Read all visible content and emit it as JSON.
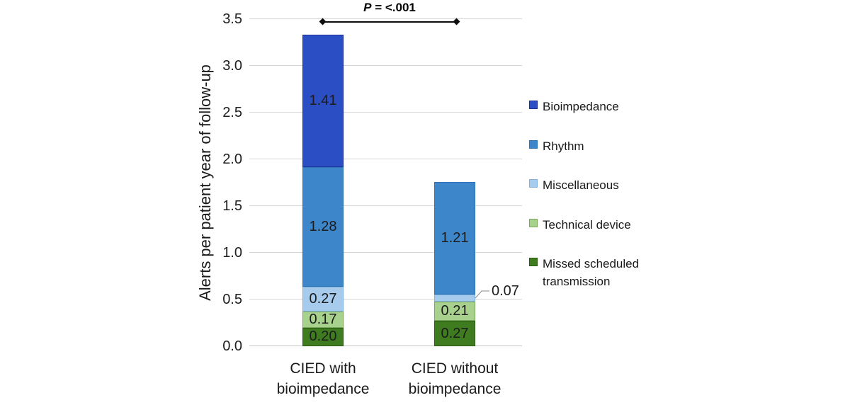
{
  "chart_data": {
    "type": "bar",
    "stacked": true,
    "title": "",
    "xlabel": "",
    "ylabel": "Alerts per patient year of follow-up",
    "ylim": [
      0,
      3.5
    ],
    "ytick_step": 0.5,
    "yticks": [
      "0.0",
      "0.5",
      "1.0",
      "1.5",
      "2.0",
      "2.5",
      "3.0",
      "3.5"
    ],
    "grid": true,
    "legend_position": "right",
    "categories": [
      "CIED with\nbioimpedance",
      "CIED without\nbioimpedance"
    ],
    "series": [
      {
        "name": "Missed scheduled transmission",
        "fill": "#3e7c1f",
        "border": "#2b5a14",
        "values": [
          0.2,
          0.27
        ],
        "labels": [
          "0.20",
          "0.27"
        ],
        "textured": false
      },
      {
        "name": "Technical device",
        "fill": "#a9d18e",
        "border": "#7aa95c",
        "values": [
          0.17,
          0.21
        ],
        "labels": [
          "0.17",
          "0.21"
        ],
        "textured": false
      },
      {
        "name": "Miscellaneous",
        "fill": "#a6cbec",
        "border": "#82b1dc",
        "values": [
          0.27,
          0.07
        ],
        "labels": [
          "0.27",
          "0.07"
        ],
        "textured": false
      },
      {
        "name": "Rhythm",
        "fill": "#3e86ca",
        "border": "#2e75b6",
        "values": [
          1.28,
          1.21
        ],
        "labels": [
          "1.28",
          "1.21"
        ],
        "textured": false
      },
      {
        "name": "Bioimpedance",
        "fill": "#2b4ec4",
        "border": "#1c339e",
        "values": [
          1.41,
          0
        ],
        "labels": [
          "1.41",
          ""
        ],
        "textured": true
      }
    ],
    "legend_order": [
      "Bioimpedance",
      "Rhythm",
      "Miscellaneous",
      "Technical device",
      "Missed scheduled transmission"
    ],
    "callouts": [
      {
        "series": "Miscellaneous",
        "category_index": 1,
        "text": "0.07"
      }
    ],
    "annotation": {
      "p_italic": "P",
      "p_rest": " = <.001"
    }
  }
}
